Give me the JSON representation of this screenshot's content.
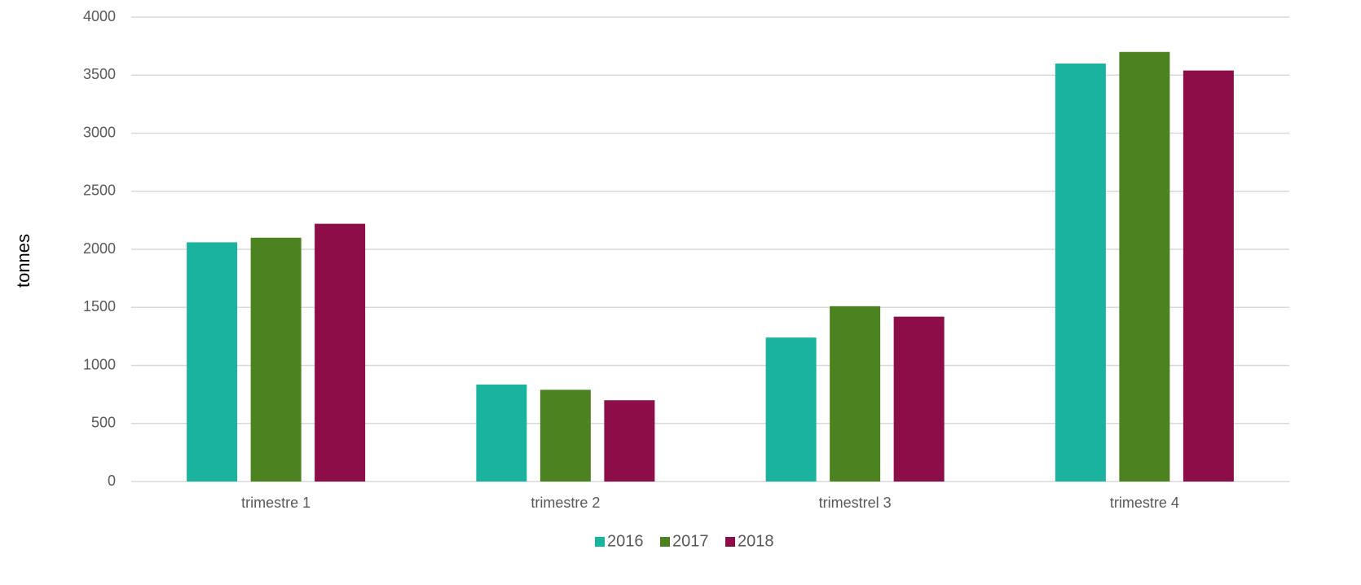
{
  "chart_data": {
    "type": "bar",
    "y_label": "tonnes",
    "categories": [
      "trimestre 1",
      "trimestre 2",
      "trimestrel 3",
      "trimestre 4"
    ],
    "series": [
      {
        "name": "2016",
        "color": "#1ab3a0",
        "values": [
          2060,
          835,
          1240,
          3600
        ]
      },
      {
        "name": "2017",
        "color": "#4d8221",
        "values": [
          2100,
          790,
          1510,
          3700
        ]
      },
      {
        "name": "2018",
        "color": "#8c0d47",
        "values": [
          2220,
          700,
          1420,
          3540
        ]
      }
    ],
    "ylim": [
      0,
      4000
    ],
    "yticks": [
      0,
      500,
      1000,
      1500,
      2000,
      2500,
      3000,
      3500,
      4000
    ],
    "grid": true,
    "legend": "bottom"
  }
}
